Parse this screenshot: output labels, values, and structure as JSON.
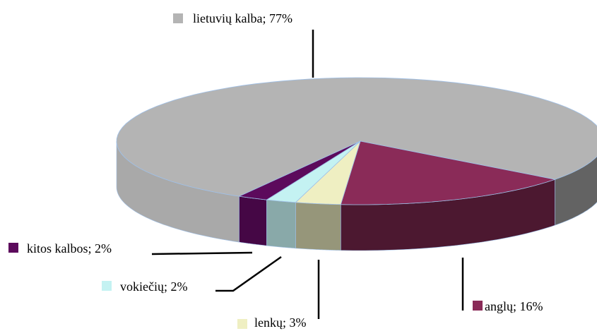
{
  "chart_data": {
    "type": "pie",
    "values": [
      77,
      16,
      3,
      2,
      2
    ],
    "value_labels": [
      "lietuvių kalba; 77%",
      "anglų; 16%",
      "lenkų; 3%",
      "vokiečių; 2%",
      "kitos kalbos; 2%"
    ],
    "colors": [
      "#b4b4b4",
      "#8a2b58",
      "#efefc2",
      "#c4f2f2",
      "#5c0a5c"
    ]
  }
}
